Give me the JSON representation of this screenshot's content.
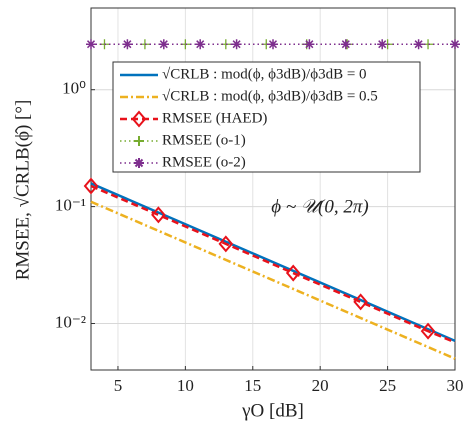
{
  "chart_data": {
    "type": "line",
    "xlabel": "γO [dB]",
    "ylabel": "RMSEE, √CRLB(ϕ̂) [°]",
    "annotation": "ϕ ~ 𝒰(0, 2π)",
    "xlim": [
      3,
      30
    ],
    "xticks": [
      5,
      10,
      15,
      20,
      25,
      30
    ],
    "ylim": [
      0.004,
      5
    ],
    "log_y": true,
    "yticks": [
      {
        "value": 0.01,
        "label": "10⁻²"
      },
      {
        "value": 0.1,
        "label": "10⁻¹"
      },
      {
        "value": 1,
        "label": "10⁰"
      }
    ],
    "grid": true,
    "legend": "upper center",
    "series": [
      {
        "name": "√CRLB : mod(ϕ, ϕ3dB)/ϕ3dB = 0",
        "color": "#0072BD",
        "dash": "solid",
        "marker": "none",
        "x": [
          3,
          30
        ],
        "values": [
          0.158,
          0.0071
        ]
      },
      {
        "name": "√CRLB : mod(ϕ, ϕ3dB)/ϕ3dB = 0.5",
        "color": "#EDB120",
        "dash": "dashdot",
        "marker": "none",
        "x": [
          3,
          30
        ],
        "values": [
          0.11,
          0.005
        ]
      },
      {
        "name": "RMSEE (HAED)",
        "color": "#E8121B",
        "dash": "dashed",
        "marker": "diamond",
        "x": [
          3,
          8,
          13,
          18,
          23,
          28,
          30
        ],
        "values": [
          0.15,
          0.085,
          0.048,
          0.027,
          0.0153,
          0.0086,
          0.0069
        ]
      },
      {
        "name": "RMSEE (o-1)",
        "color": "#77AC30",
        "dash": "dotted",
        "marker": "plus",
        "x": [
          3,
          4,
          7,
          10,
          13,
          16,
          19,
          22,
          25,
          28,
          30
        ],
        "values": [
          2.45,
          2.45,
          2.45,
          2.45,
          2.45,
          2.45,
          2.45,
          2.45,
          2.45,
          2.45,
          2.45
        ]
      },
      {
        "name": "RMSEE (o-2)",
        "color": "#7E2F8E",
        "dash": "dotted",
        "marker": "asterisk",
        "x": [
          3,
          5.7,
          8.4,
          11.1,
          13.8,
          16.5,
          19.2,
          21.9,
          24.6,
          27.3,
          30
        ],
        "values": [
          2.45,
          2.45,
          2.45,
          2.45,
          2.45,
          2.45,
          2.45,
          2.45,
          2.45,
          2.45,
          2.45
        ]
      }
    ]
  }
}
